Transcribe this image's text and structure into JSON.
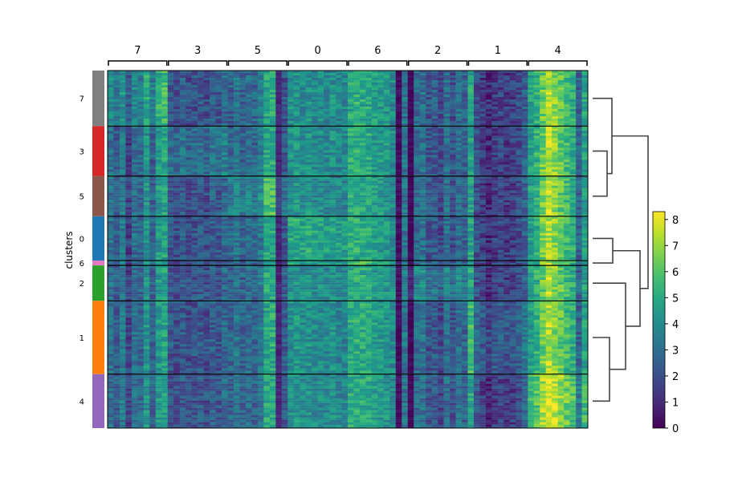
{
  "chart_data": {
    "type": "heatmap",
    "title": "",
    "ylabel": "clusters",
    "row_groups": [
      {
        "label": "7",
        "weight": 69,
        "color": "#7f7f7f"
      },
      {
        "label": "3",
        "weight": 62,
        "color": "#d62728"
      },
      {
        "label": "5",
        "weight": 50,
        "color": "#8c564b"
      },
      {
        "label": "0",
        "weight": 55,
        "color": "#1f77b4"
      },
      {
        "label": "6",
        "weight": 6,
        "color": "#e377c2"
      },
      {
        "label": "2",
        "weight": 44,
        "color": "#2ca02c"
      },
      {
        "label": "1",
        "weight": 91,
        "color": "#ff7f0e"
      },
      {
        "label": "4",
        "weight": 67,
        "color": "#9467bd"
      }
    ],
    "column_groups": [
      "7",
      "3",
      "5",
      "0",
      "6",
      "2",
      "1",
      "4"
    ],
    "genes_per_group": 10,
    "gene_column_means": {
      "7": [
        3.1,
        2.4,
        3.4,
        1.6,
        3.0,
        2.8,
        4.2,
        2.6,
        4.4,
        4.8
      ],
      "3": [
        2.2,
        2.0,
        2.4,
        1.9,
        2.1,
        2.3,
        2.0,
        2.5,
        2.2,
        2.8
      ],
      "5": [
        2.6,
        3.2,
        2.5,
        2.9,
        2.7,
        3.3,
        4.9,
        5.0,
        0.9,
        2.3
      ],
      "0": [
        4.1,
        4.3,
        4.0,
        4.2,
        3.9,
        4.0,
        3.8,
        4.1,
        3.8,
        3.7
      ],
      "6": [
        5.1,
        5.2,
        5.0,
        5.0,
        4.6,
        4.5,
        4.3,
        3.9,
        0.3,
        3.2
      ],
      "2": [
        0.1,
        2.9,
        3.1,
        2.2,
        2.4,
        1.8,
        3.0,
        2.1,
        3.0,
        2.6
      ],
      "1": [
        4.8,
        2.0,
        1.5,
        1.0,
        1.5,
        1.7,
        1.4,
        1.6,
        1.9,
        2.6
      ],
      "4": [
        4.6,
        5.2,
        6.4,
        7.4,
        6.8,
        6.2,
        5.6,
        5.1,
        2.6,
        4.7
      ]
    },
    "colormap": "viridis",
    "colorbar": {
      "min": 0,
      "max": 8.3,
      "ticks": [
        0,
        1,
        2,
        3,
        4,
        5,
        6,
        7,
        8
      ]
    },
    "dendrogram": {
      "order": [
        "7",
        "3",
        "5",
        "0",
        "6",
        "2",
        "1",
        "4"
      ],
      "side": "right"
    }
  }
}
